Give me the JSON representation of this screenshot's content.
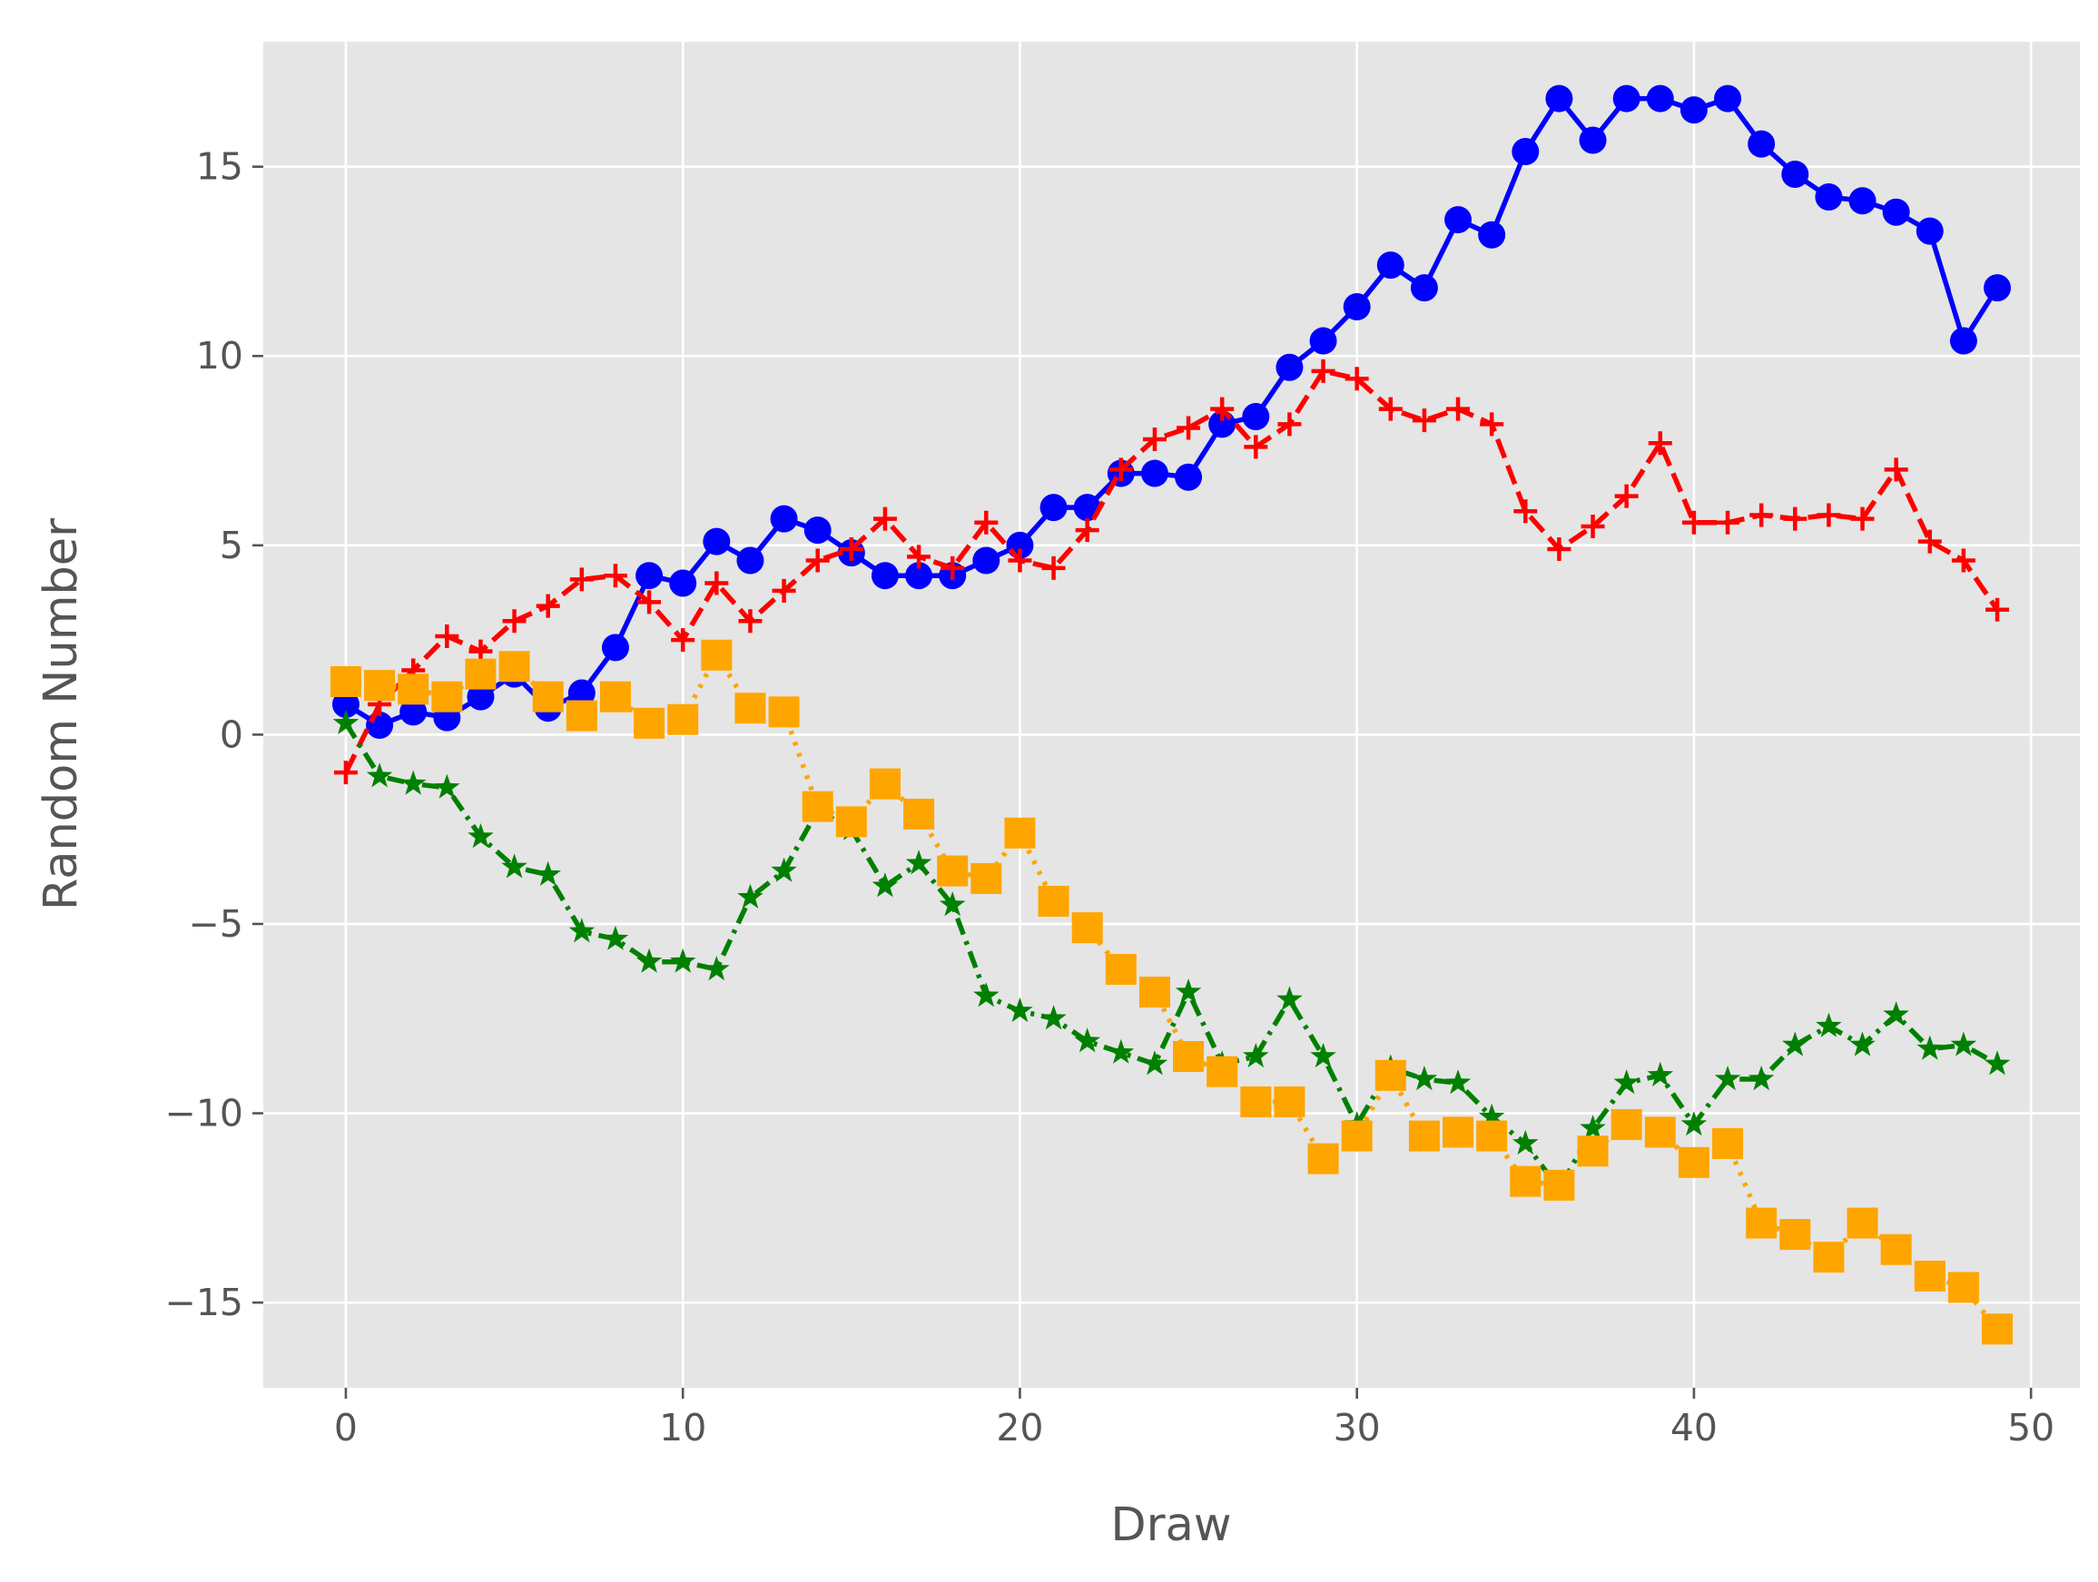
{
  "chart_data": {
    "type": "line",
    "title": "",
    "xlabel": "Draw",
    "ylabel": "Random Number",
    "xlim": [
      -2.45,
      51.45
    ],
    "ylim": [
      -17.25,
      18.3
    ],
    "xticks": [
      0,
      10,
      20,
      30,
      40,
      50
    ],
    "xtick_labels": [
      "0",
      "10",
      "20",
      "30",
      "40",
      "50"
    ],
    "yticks": [
      -15,
      -10,
      -5,
      0,
      5,
      10,
      15
    ],
    "ytick_labels": [
      "−15",
      "−10",
      "−5",
      "0",
      "5",
      "10",
      "15"
    ],
    "grid": true,
    "legend": "none",
    "background": "#e5e5e5",
    "gridcolor": "#ffffff",
    "series": [
      {
        "color": "#0000ff",
        "linestyle": "solid",
        "marker": "circle",
        "x": [
          0,
          1,
          2,
          3,
          4,
          5,
          6,
          7,
          8,
          9,
          10,
          11,
          12,
          13,
          14,
          15,
          16,
          17,
          18,
          19,
          20,
          21,
          22,
          23,
          24,
          25,
          26,
          27,
          28,
          29,
          30,
          31,
          32,
          33,
          34,
          35,
          36,
          37,
          38,
          39,
          40,
          41,
          42,
          43,
          44,
          45,
          46,
          47,
          48,
          49
        ],
        "values": [
          0.8,
          0.25,
          0.6,
          0.45,
          1.0,
          1.6,
          0.7,
          1.1,
          2.3,
          4.2,
          4.0,
          5.1,
          4.6,
          5.7,
          5.4,
          4.8,
          4.2,
          4.2,
          4.2,
          4.6,
          5.0,
          6.0,
          6.0,
          6.9,
          6.9,
          6.8,
          8.2,
          8.4,
          9.7,
          10.4,
          11.3,
          12.4,
          11.8,
          13.6,
          13.2,
          15.4,
          16.8,
          15.7,
          16.8,
          16.8,
          16.5,
          16.8,
          15.6,
          14.8,
          14.2,
          14.1,
          13.8,
          13.3,
          10.4,
          11.8
        ]
      },
      {
        "color": "#ff0000",
        "linestyle": "dashed",
        "marker": "plus",
        "x": [
          0,
          1,
          2,
          3,
          4,
          5,
          6,
          7,
          8,
          9,
          10,
          11,
          12,
          13,
          14,
          15,
          16,
          17,
          18,
          19,
          20,
          21,
          22,
          23,
          24,
          25,
          26,
          27,
          28,
          29,
          30,
          31,
          32,
          33,
          34,
          35,
          36,
          37,
          38,
          39,
          40,
          41,
          42,
          43,
          44,
          45,
          46,
          47,
          48,
          49
        ],
        "values": [
          -1.0,
          0.8,
          1.7,
          2.6,
          2.2,
          3.0,
          3.4,
          4.1,
          4.2,
          3.5,
          2.5,
          4.0,
          3.0,
          3.8,
          4.6,
          4.9,
          5.7,
          4.7,
          4.4,
          5.6,
          4.6,
          4.4,
          5.4,
          7.0,
          7.8,
          8.1,
          8.6,
          7.6,
          8.2,
          9.6,
          9.4,
          8.6,
          8.3,
          8.6,
          8.2,
          5.9,
          4.9,
          5.5,
          6.3,
          7.7,
          5.6,
          5.6,
          5.8,
          5.7,
          5.8,
          5.7,
          7.0,
          5.1,
          4.6,
          3.3
        ]
      },
      {
        "color": "#008000",
        "linestyle": "dashdot",
        "marker": "star",
        "x": [
          0,
          1,
          2,
          3,
          4,
          5,
          6,
          7,
          8,
          9,
          10,
          11,
          12,
          13,
          14,
          15,
          16,
          17,
          18,
          19,
          20,
          21,
          22,
          23,
          24,
          25,
          26,
          27,
          28,
          29,
          30,
          31,
          32,
          33,
          34,
          35,
          36,
          37,
          38,
          39,
          40,
          41,
          42,
          43,
          44,
          45,
          46,
          47,
          48,
          49
        ],
        "values": [
          0.3,
          -1.1,
          -1.3,
          -1.4,
          -2.7,
          -3.5,
          -3.7,
          -5.2,
          -5.4,
          -6.0,
          -6.0,
          -6.2,
          -4.3,
          -3.6,
          -2.0,
          -2.5,
          -4.0,
          -3.4,
          -4.5,
          -6.9,
          -7.3,
          -7.5,
          -8.1,
          -8.4,
          -8.7,
          -6.8,
          -8.7,
          -8.5,
          -7.0,
          -8.5,
          -10.3,
          -8.8,
          -9.1,
          -9.2,
          -10.1,
          -10.8,
          -12.0,
          -10.4,
          -9.2,
          -9.0,
          -10.3,
          -9.1,
          -9.1,
          -8.2,
          -7.7,
          -8.2,
          -7.4,
          -8.3,
          -8.2,
          -8.7
        ]
      },
      {
        "color": "#ffa500",
        "linestyle": "dotted",
        "marker": "square",
        "x": [
          0,
          1,
          2,
          3,
          4,
          5,
          6,
          7,
          8,
          9,
          10,
          11,
          12,
          13,
          14,
          15,
          16,
          17,
          18,
          19,
          20,
          21,
          22,
          23,
          24,
          25,
          26,
          27,
          28,
          29,
          30,
          31,
          32,
          33,
          34,
          35,
          36,
          37,
          38,
          39,
          40,
          41,
          42,
          43,
          44,
          45,
          46,
          47,
          48,
          49
        ],
        "values": [
          1.4,
          1.3,
          1.2,
          1.0,
          1.6,
          1.8,
          1.0,
          0.5,
          1.0,
          0.3,
          0.4,
          2.1,
          0.7,
          0.6,
          -1.9,
          -2.3,
          -1.3,
          -2.1,
          -3.6,
          -3.8,
          -2.6,
          -4.4,
          -5.1,
          -6.2,
          -6.8,
          -8.5,
          -8.9,
          -9.7,
          -9.7,
          -11.2,
          -10.6,
          -9.0,
          -10.6,
          -10.5,
          -10.6,
          -11.8,
          -11.9,
          -11.0,
          -10.3,
          -10.5,
          -11.3,
          -10.8,
          -12.9,
          -13.2,
          -13.8,
          -12.9,
          -13.6,
          -14.3,
          -14.6,
          -15.7
        ]
      }
    ]
  }
}
